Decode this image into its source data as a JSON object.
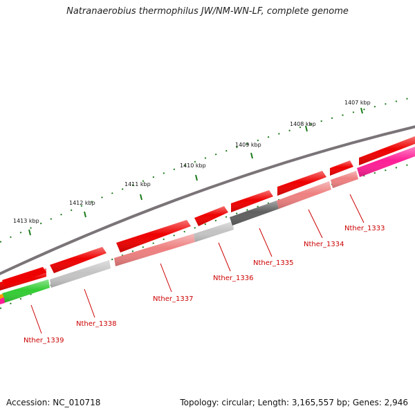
{
  "title": "Natranaerobius thermophilus JW/NM-WN-LF, complete genome",
  "footer": {
    "accession": "Accession: NC_010718",
    "summary": "Topology: circular; Length: 3,165,557 bp; Genes: 2,946"
  },
  "colors": {
    "backbone": "#7a7478",
    "tick": "#1a7a1a",
    "gene_red": "#ee0000",
    "gene_pink": "#ee8080",
    "gene_light_gray": "#c4c4c4",
    "gene_dark_gray": "#606060",
    "gene_green": "#33cc33",
    "gene_magenta": "#ff1e96",
    "label": "#cc0000"
  },
  "position_labels": [
    "1407 kbp",
    "1408 kbp",
    "1409 kbp",
    "1410 kbp",
    "1411 kbp",
    "1412 kbp",
    "1413 kbp"
  ],
  "gene_labels": [
    "Nther_1333",
    "Nther_1334",
    "Nther_1335",
    "Nther_1336",
    "Nther_1337",
    "Nther_1338",
    "Nther_1339"
  ]
}
